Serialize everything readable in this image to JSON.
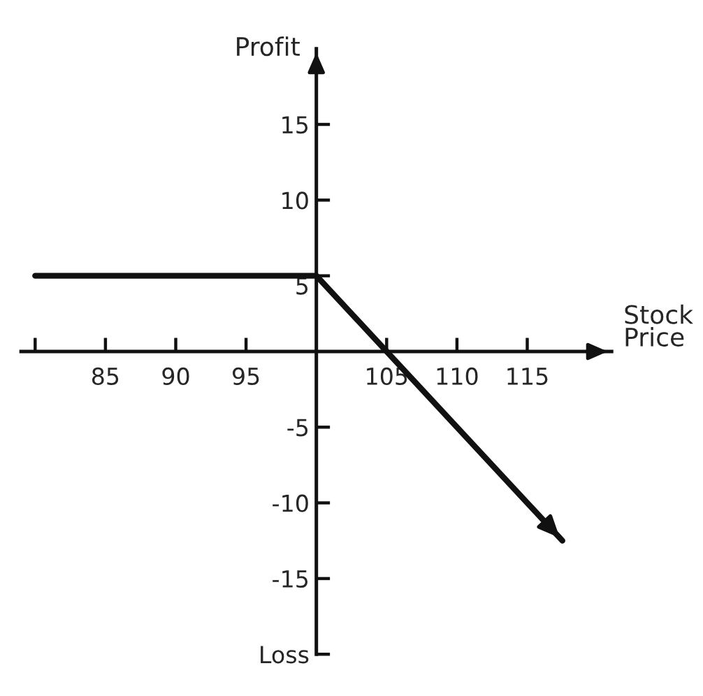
{
  "chart_data": {
    "type": "line",
    "xlabel": "Stock Price",
    "ylabel": "Profit",
    "x": [
      80,
      100,
      117.5
    ],
    "series": [
      {
        "color": "#111111",
        "values": [
          5,
          5,
          -12.5
        ]
      }
    ],
    "xlim": [
      79,
      121
    ],
    "ylim": [
      -20,
      20
    ],
    "xticks": [
      {
        "value": 80,
        "label": null
      },
      85,
      90,
      95,
      105,
      110,
      115
    ],
    "yticks": [
      15,
      10,
      5,
      -5,
      -10,
      -15,
      {
        "value": -20,
        "label": "Loss"
      }
    ],
    "grid": false,
    "marker": "none",
    "line_style": "solid",
    "legend": false
  }
}
